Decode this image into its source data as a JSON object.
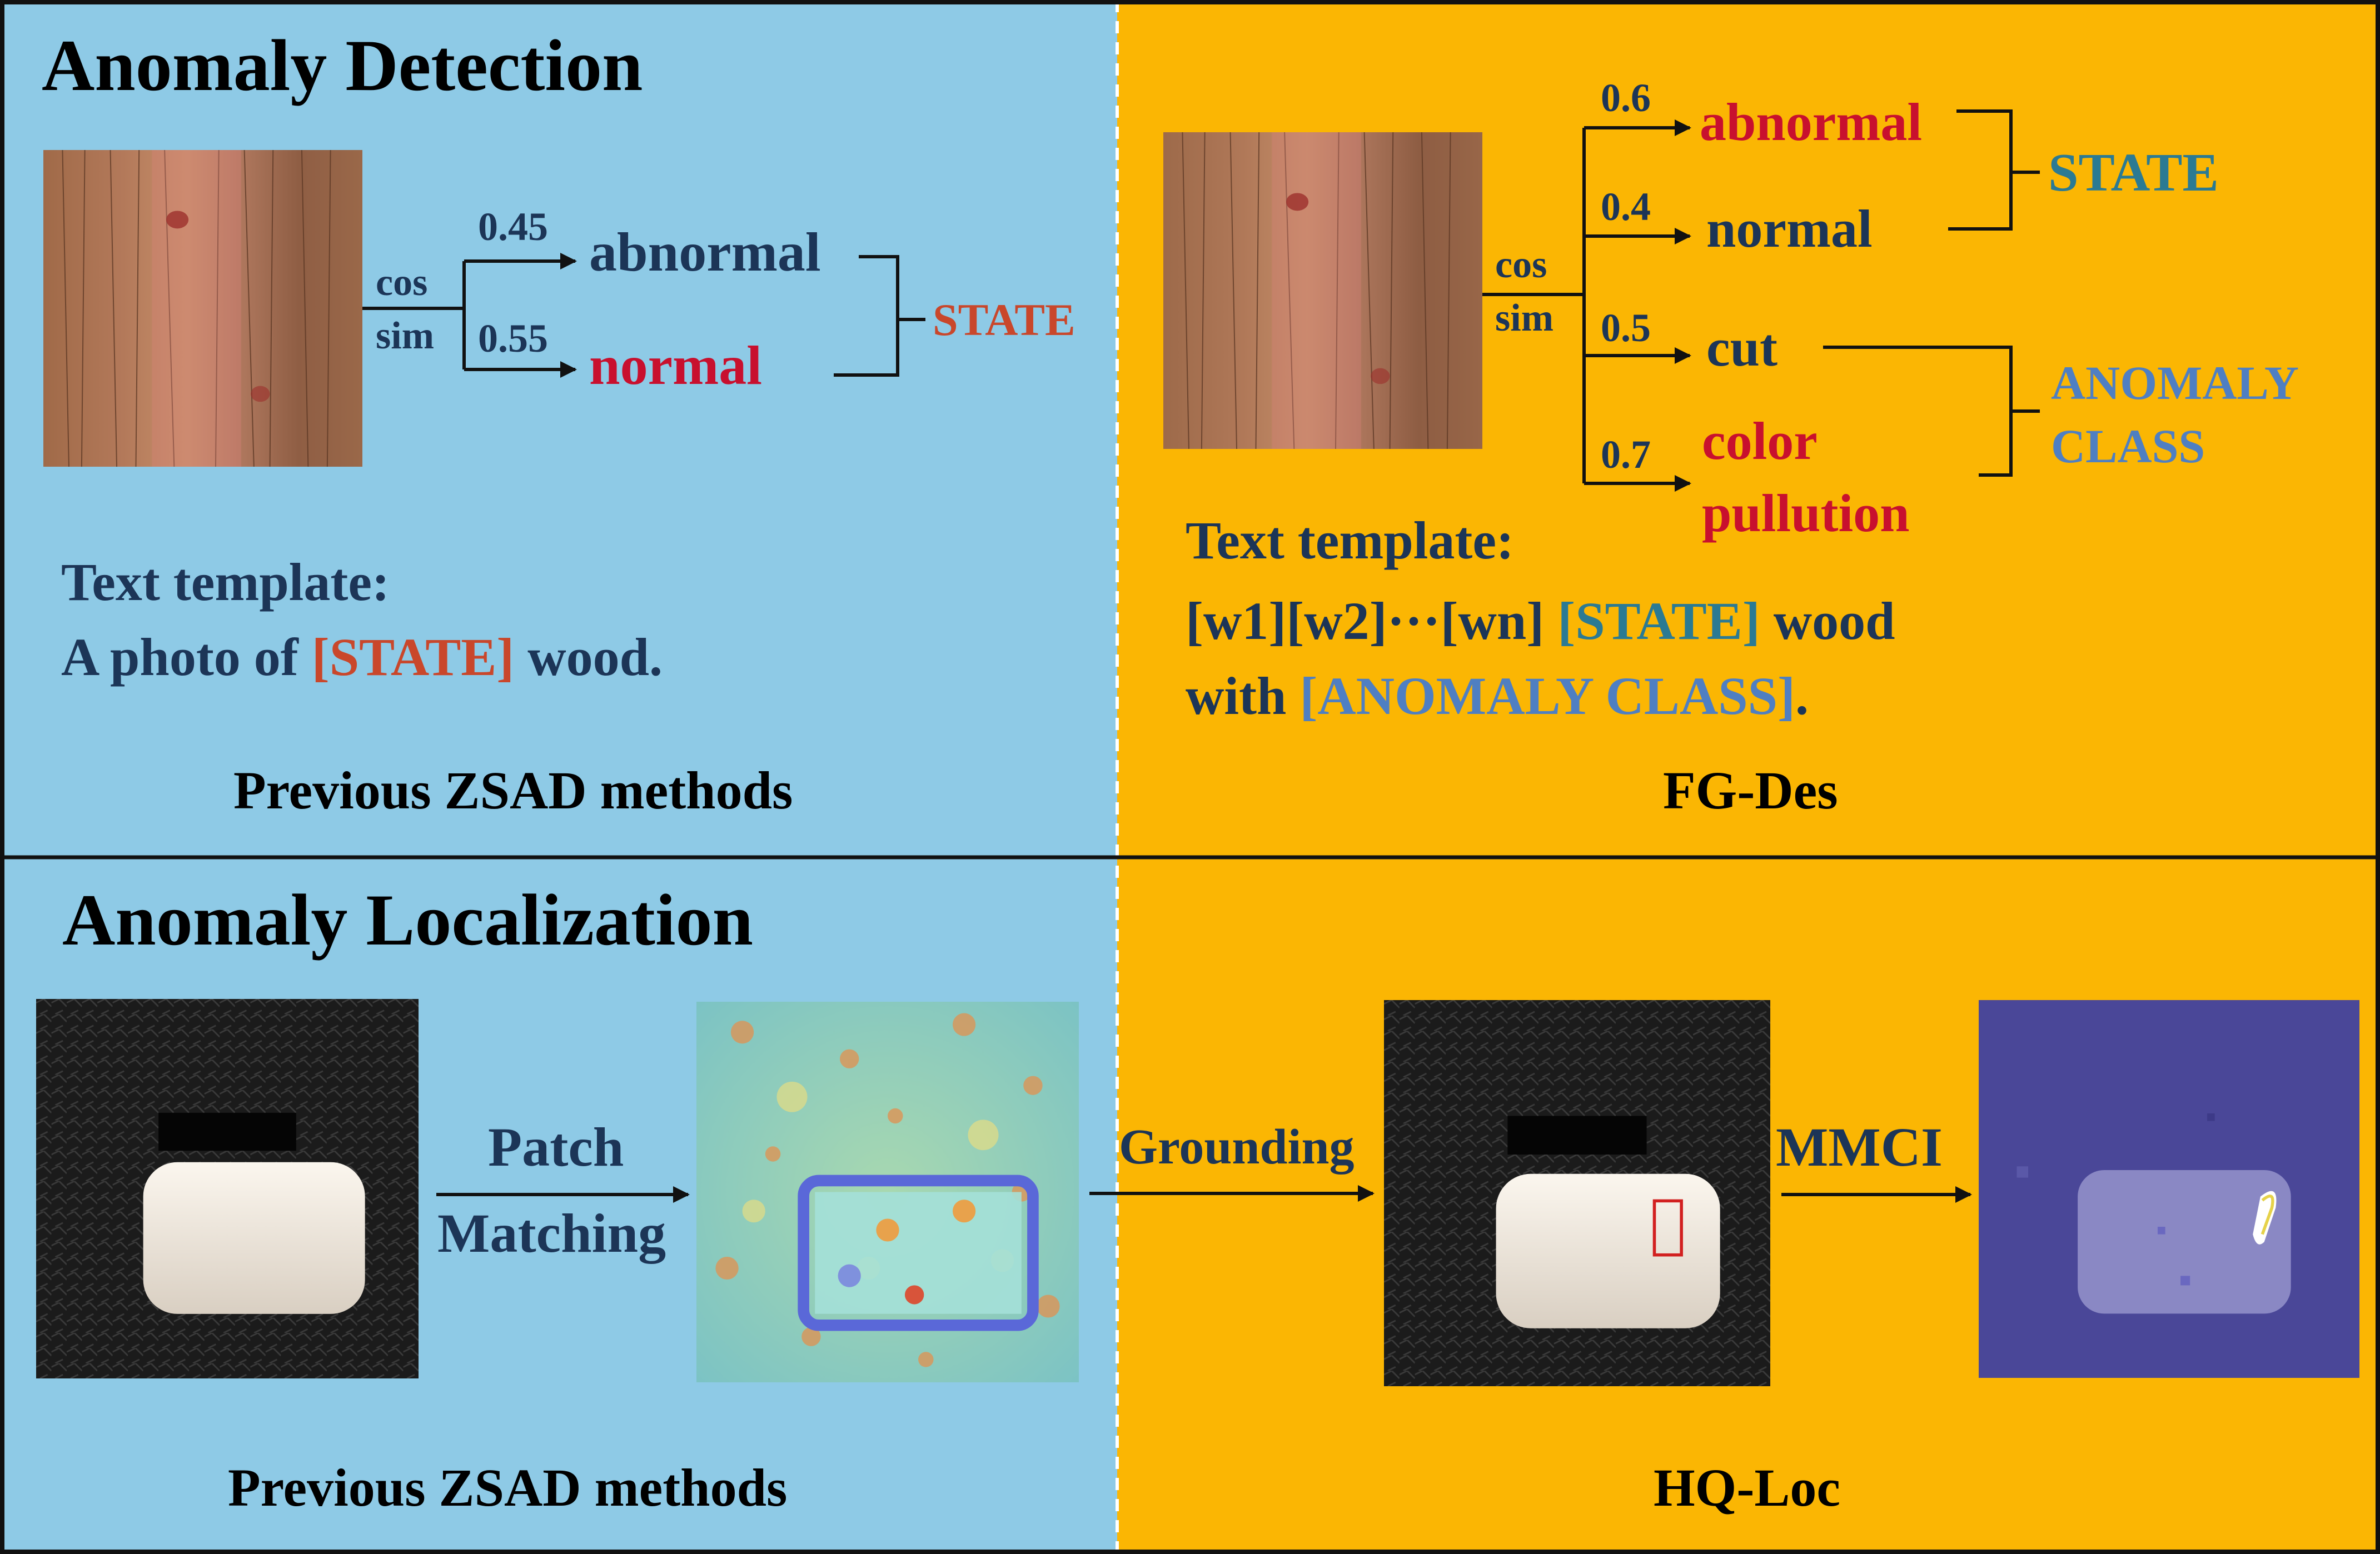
{
  "colors": {
    "left_panel": "#8ecae6",
    "right_panel": "#fbb603",
    "navy": "#1c3557",
    "red": "#c8102e",
    "rust": "#c9472b",
    "teal": "#2b7a93",
    "steel_blue": "#4f7fc2",
    "border": "#111111"
  },
  "detection": {
    "heading": "Anomaly Detection",
    "previous": {
      "cos": "cos",
      "sim": "sim",
      "scores": [
        "0.45",
        "0.55"
      ],
      "labels": [
        "abnormal",
        "normal"
      ],
      "group_label": "STATE",
      "template_title": "Text template:",
      "template_prefix": "A photo of ",
      "template_slot": "[STATE]",
      "template_suffix": " wood.",
      "caption": "Previous ZSAD methods"
    },
    "fgdes": {
      "cos": "cos",
      "sim": "sim",
      "scores": [
        "0.6",
        "0.4",
        "0.5",
        "0.7"
      ],
      "state_labels": [
        "abnormal",
        "normal"
      ],
      "class_labels": [
        "cut",
        "color",
        "pullution"
      ],
      "state_group": "STATE",
      "class_group_line1": "ANOMALY",
      "class_group_line2": "CLASS",
      "template_title": "Text template:",
      "template_line1_prefix": "[w1][w2]···[wn] ",
      "template_line1_slot": "[STATE]",
      "template_line1_suffix": " wood",
      "template_line2_prefix": "with ",
      "template_line2_slot": "[ANOMALY CLASS]",
      "template_line2_suffix": ".",
      "caption": "FG-Des"
    }
  },
  "localization": {
    "heading": "Anomaly Localization",
    "previous": {
      "step_line1": "Patch",
      "step_line2": "Matching",
      "caption": "Previous ZSAD methods"
    },
    "hqloc": {
      "grounding_label": "Grounding",
      "mmci_label": "MMCI",
      "caption": "HQ-Loc"
    }
  }
}
